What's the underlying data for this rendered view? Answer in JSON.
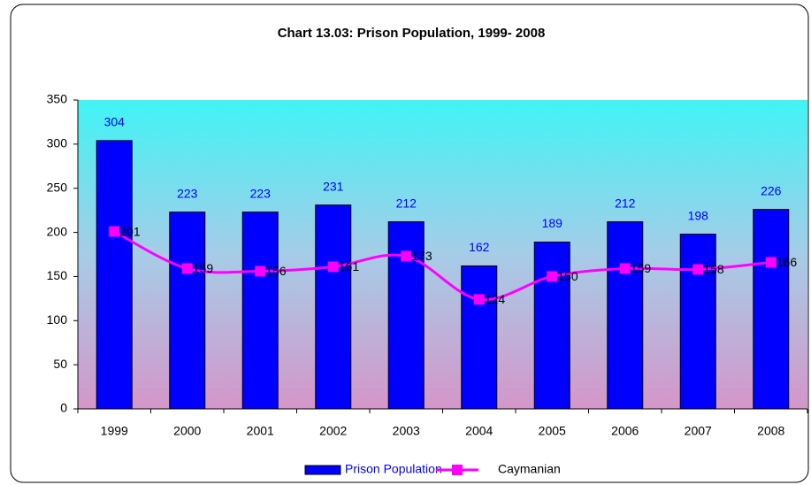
{
  "chart_data": {
    "type": "bar",
    "title": "Chart 13.03: Prison Population, 1999- 2008",
    "categories": [
      "1999",
      "2000",
      "2001",
      "2002",
      "2003",
      "2004",
      "2005",
      "2006",
      "2007",
      "2008"
    ],
    "series": [
      {
        "name": "Prison Population",
        "type": "bar",
        "color": "#0000ff",
        "values": [
          304,
          223,
          223,
          231,
          212,
          162,
          189,
          212,
          198,
          226
        ]
      },
      {
        "name": "Caymanian",
        "type": "line",
        "color": "#ff00ff",
        "values": [
          201,
          159,
          156,
          161,
          173,
          124,
          150,
          159,
          158,
          166
        ]
      }
    ],
    "ylim": [
      0,
      350
    ],
    "yticks": [
      0,
      50,
      100,
      150,
      200,
      250,
      300,
      350
    ],
    "grid": false,
    "legend": "bottom"
  }
}
